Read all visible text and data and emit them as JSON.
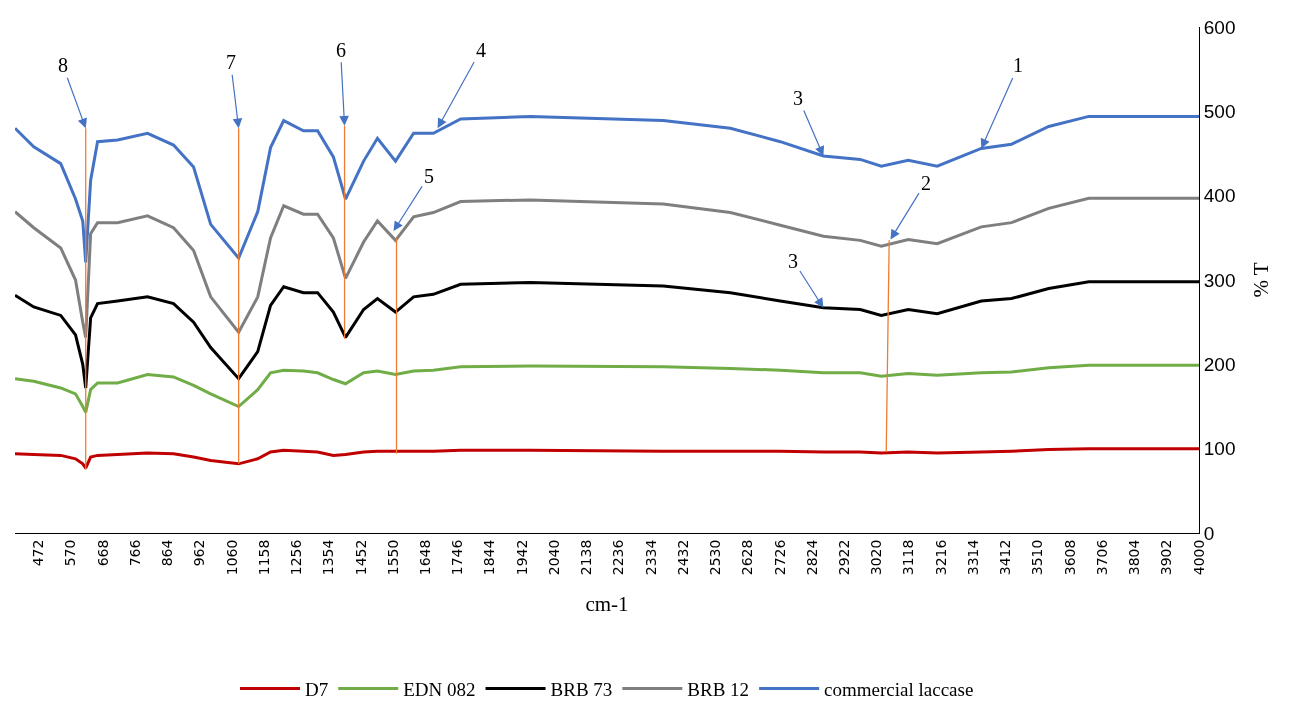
{
  "chart_data": {
    "type": "line",
    "xlabel": "cm-1",
    "ylabel": "% T",
    "xlim": [
      400,
      4000
    ],
    "ylim": [
      0,
      600
    ],
    "xticks": [
      472,
      570,
      668,
      766,
      864,
      962,
      1060,
      1158,
      1256,
      1354,
      1452,
      1550,
      1648,
      1746,
      1844,
      1942,
      2040,
      2138,
      2236,
      2334,
      2432,
      2530,
      2628,
      2726,
      2824,
      2922,
      3020,
      3118,
      3216,
      3314,
      3412,
      3510,
      3608,
      3706,
      3804,
      3902,
      4000
    ],
    "yticks": [
      0,
      100,
      200,
      300,
      400,
      500,
      600
    ],
    "grid": false,
    "legend": "bottom",
    "marker": "none",
    "line_style": "solid",
    "x": [
      400,
      457,
      539,
      584,
      606,
      615,
      630,
      651,
      712,
      803,
      882,
      943,
      995,
      1080,
      1138,
      1177,
      1217,
      1277,
      1320,
      1368,
      1405,
      1460,
      1502,
      1557,
      1612,
      1672,
      1755,
      1967,
      2371,
      2575,
      2727,
      2858,
      2970,
      3034,
      3116,
      3204,
      3338,
      3430,
      3543,
      3665,
      4000
    ],
    "series": [
      {
        "name": "D7",
        "color": "#c00000",
        "values": [
          94,
          93,
          92,
          88,
          82,
          77,
          90,
          92,
          93,
          95,
          94,
          90,
          86,
          82,
          88,
          96,
          98,
          97,
          96,
          92,
          93,
          96,
          97,
          97,
          97,
          97,
          98,
          98,
          97,
          97,
          97,
          96,
          96,
          95,
          96,
          95,
          96,
          97,
          99,
          100,
          100
        ]
      },
      {
        "name": "EDN 082",
        "color": "#70ad47",
        "values": [
          183,
          180,
          172,
          165,
          150,
          143,
          170,
          178,
          178,
          188,
          185,
          175,
          165,
          150,
          170,
          190,
          193,
          192,
          190,
          182,
          177,
          190,
          192,
          188,
          192,
          193,
          197,
          198,
          197,
          195,
          193,
          190,
          190,
          186,
          189,
          187,
          190,
          191,
          196,
          199,
          199
        ]
      },
      {
        "name": "BRB 73",
        "color": "#000000",
        "values": [
          282,
          268,
          258,
          235,
          200,
          172,
          255,
          272,
          275,
          280,
          272,
          250,
          220,
          183,
          215,
          270,
          292,
          285,
          285,
          262,
          232,
          265,
          278,
          262,
          280,
          283,
          295,
          297,
          293,
          285,
          275,
          267,
          265,
          258,
          265,
          260,
          275,
          278,
          290,
          298,
          298
        ]
      },
      {
        "name": "BRB 12",
        "color": "#7f7f7f",
        "values": [
          381,
          362,
          338,
          300,
          250,
          232,
          355,
          368,
          368,
          376,
          362,
          335,
          280,
          238,
          280,
          350,
          388,
          378,
          378,
          350,
          302,
          345,
          370,
          347,
          375,
          380,
          393,
          395,
          390,
          380,
          365,
          352,
          347,
          340,
          348,
          343,
          363,
          368,
          385,
          397,
          397
        ]
      },
      {
        "name": "commercial laccase",
        "color": "#4472c4",
        "values": [
          480,
          458,
          438,
          396,
          370,
          321,
          418,
          464,
          466,
          474,
          460,
          434,
          366,
          326,
          381,
          457,
          489,
          477,
          477,
          446,
          396,
          441,
          468,
          441,
          474,
          474,
          491,
          494,
          489,
          480,
          464,
          447,
          443,
          435,
          442,
          435,
          456,
          461,
          482,
          494,
          494
        ]
      },
      {
        "color": "#ed7d31",
        "x": [
          615,
          615
        ],
        "values": [
          75,
          480
        ]
      },
      {
        "color": "#ed7d31",
        "x": [
          1080,
          1080
        ],
        "values": [
          82,
          480
        ]
      },
      {
        "color": "#ed7d31",
        "x": [
          1402,
          1402
        ],
        "values": [
          230,
          483
        ]
      },
      {
        "color": "#ed7d31",
        "x": [
          1560,
          1560
        ],
        "values": [
          94,
          350
        ]
      },
      {
        "color": "#ed7d31",
        "x": [
          3049,
          3058
        ],
        "values": [
          96,
          347
        ]
      }
    ],
    "annotations": [
      {
        "text": "8",
        "x": 615,
        "y": 480
      },
      {
        "text": "7",
        "x": 1080,
        "y": 480
      },
      {
        "text": "6",
        "x": 1402,
        "y": 483
      },
      {
        "text": "4",
        "x": 1685,
        "y": 480
      },
      {
        "text": "5",
        "x": 1551,
        "y": 358
      },
      {
        "text": "3",
        "x": 2858,
        "y": 447
      },
      {
        "text": "3",
        "x": 2858,
        "y": 267
      },
      {
        "text": "2",
        "x": 3062,
        "y": 348
      },
      {
        "text": "1",
        "x": 3338,
        "y": 456
      }
    ]
  }
}
